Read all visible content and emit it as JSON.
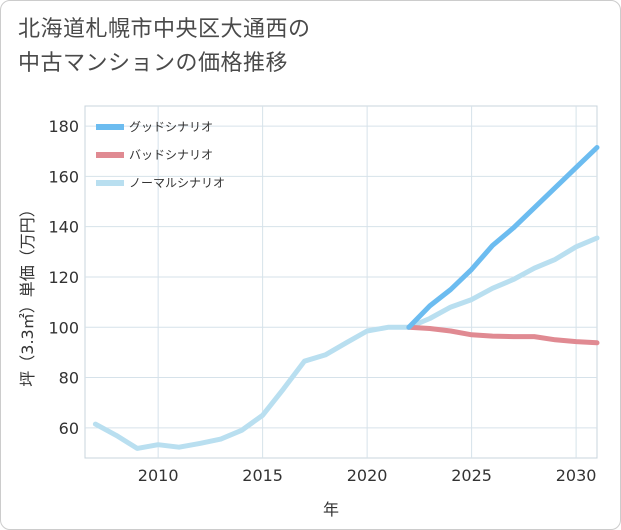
{
  "title": "北海道札幌市中央区大通西の\n中古マンションの価格推移",
  "chart_data": {
    "type": "line",
    "xlabel": "年",
    "ylabel": "坪（3.3㎡）単価（万円）",
    "xlim": [
      2006.5,
      2031
    ],
    "ylim": [
      48,
      188
    ],
    "xticks": [
      2010,
      2015,
      2020,
      2025,
      2030
    ],
    "yticks": [
      60,
      80,
      100,
      120,
      140,
      160,
      180
    ],
    "grid": true,
    "legend_position": "top-left",
    "series": [
      {
        "name": "グッドシナリオ",
        "color": "#6cbcf0",
        "x": [
          2022,
          2023,
          2024,
          2025,
          2026,
          2027,
          2028,
          2029,
          2030,
          2031
        ],
        "y": [
          100,
          108.5,
          115,
          123,
          132.5,
          139.5,
          147.5,
          155.5,
          163.5,
          171.5
        ]
      },
      {
        "name": "バッドシナリオ",
        "color": "#e08a92",
        "x": [
          2022,
          2023,
          2024,
          2025,
          2026,
          2027,
          2028,
          2029,
          2030,
          2031
        ],
        "y": [
          100,
          99.5,
          98.5,
          97,
          96.5,
          96.3,
          96.3,
          95,
          94.3,
          93.8
        ]
      },
      {
        "name": "ノーマルシナリオ",
        "color": "#b9dff0",
        "x": [
          2007,
          2008,
          2009,
          2010,
          2011,
          2012,
          2013,
          2014,
          2015,
          2016,
          2017,
          2018,
          2019,
          2020,
          2021,
          2022,
          2023,
          2024,
          2025,
          2026,
          2027,
          2028,
          2029,
          2030,
          2031
        ],
        "y": [
          61.5,
          57,
          51.8,
          53.3,
          52.3,
          53.8,
          55.5,
          59,
          65,
          75.5,
          86.5,
          89,
          93.8,
          98.5,
          100,
          100,
          103.5,
          108,
          111,
          115.5,
          119,
          123.5,
          127,
          132,
          135.5
        ]
      }
    ]
  }
}
